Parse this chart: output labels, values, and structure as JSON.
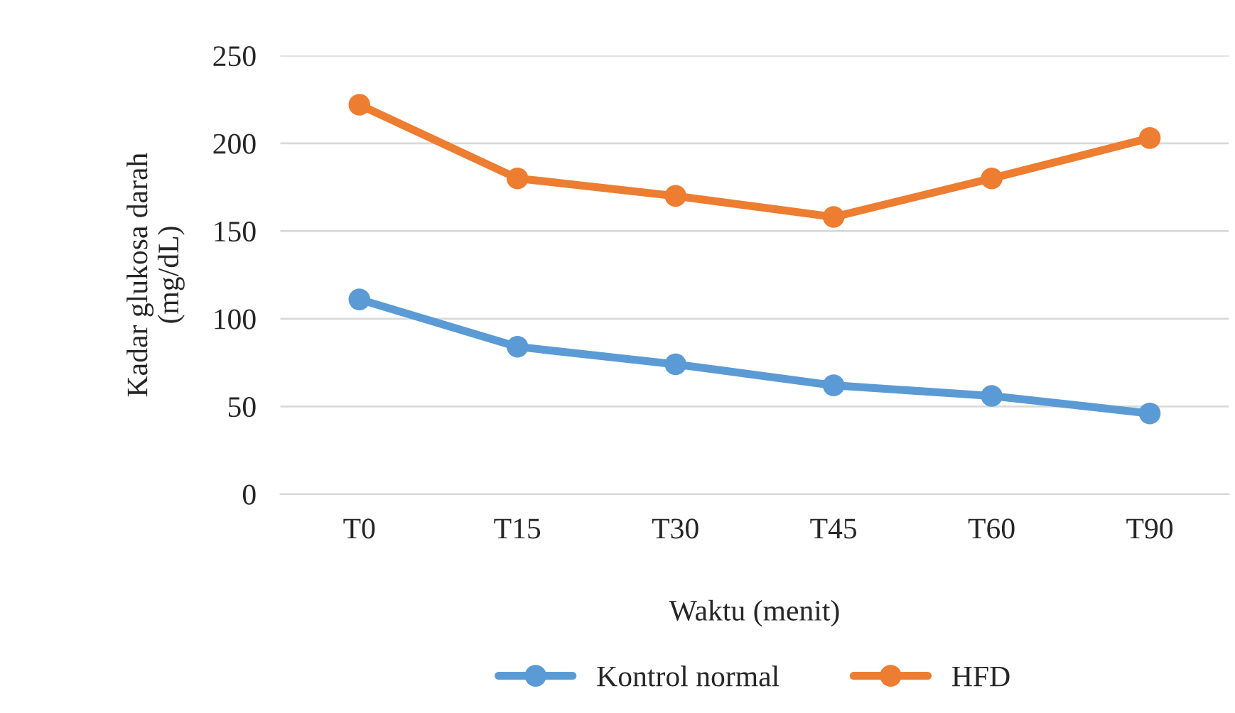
{
  "chart_data": {
    "type": "line",
    "xlabel": "Waktu (menit)",
    "ylabel": "Kadar glukosa darah\n(mg/dL)",
    "categories": [
      "T0",
      "T15",
      "T30",
      "T45",
      "T60",
      "T90"
    ],
    "series": [
      {
        "name": "Kontrol normal",
        "color": "#5b9bd5",
        "values": [
          111,
          84,
          74,
          62,
          56,
          46
        ]
      },
      {
        "name": "HFD",
        "color": "#ed7d31",
        "values": [
          222,
          180,
          170,
          158,
          180,
          203
        ]
      }
    ],
    "ylim": [
      0,
      250
    ],
    "yticks": [
      0,
      50,
      100,
      150,
      200,
      250
    ],
    "grid": "y",
    "legend": "bottom",
    "marker": "circle",
    "line_style": "solid"
  }
}
